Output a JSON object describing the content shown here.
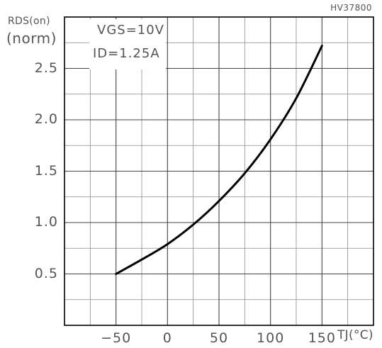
{
  "chart_data": {
    "type": "line",
    "ylabel": "RDS(on)",
    "ylabel_unit": "(norm)",
    "xlabel": "TJ(°C)",
    "corner_label": "HV37800",
    "annotations": [
      "VGS=10V",
      "ID=1.25A"
    ],
    "xlim": [
      -100,
      200
    ],
    "ylim": [
      0,
      3.0
    ],
    "x_ticks": [
      "−50",
      "0",
      "50",
      "100",
      "150"
    ],
    "x_tick_values": [
      -50,
      0,
      50,
      100,
      150
    ],
    "y_ticks": [
      "0.5",
      "1.0",
      "1.5",
      "2.0",
      "2.5"
    ],
    "y_tick_values": [
      0.5,
      1.0,
      1.5,
      2.0,
      2.5
    ],
    "grid": true,
    "series": [
      {
        "x": [
          -50,
          -25,
          0,
          25,
          50,
          75,
          100,
          125,
          150
        ],
        "y": [
          0.5,
          0.64,
          0.79,
          0.98,
          1.21,
          1.48,
          1.81,
          2.21,
          2.72
        ],
        "color": "#000000"
      }
    ]
  }
}
